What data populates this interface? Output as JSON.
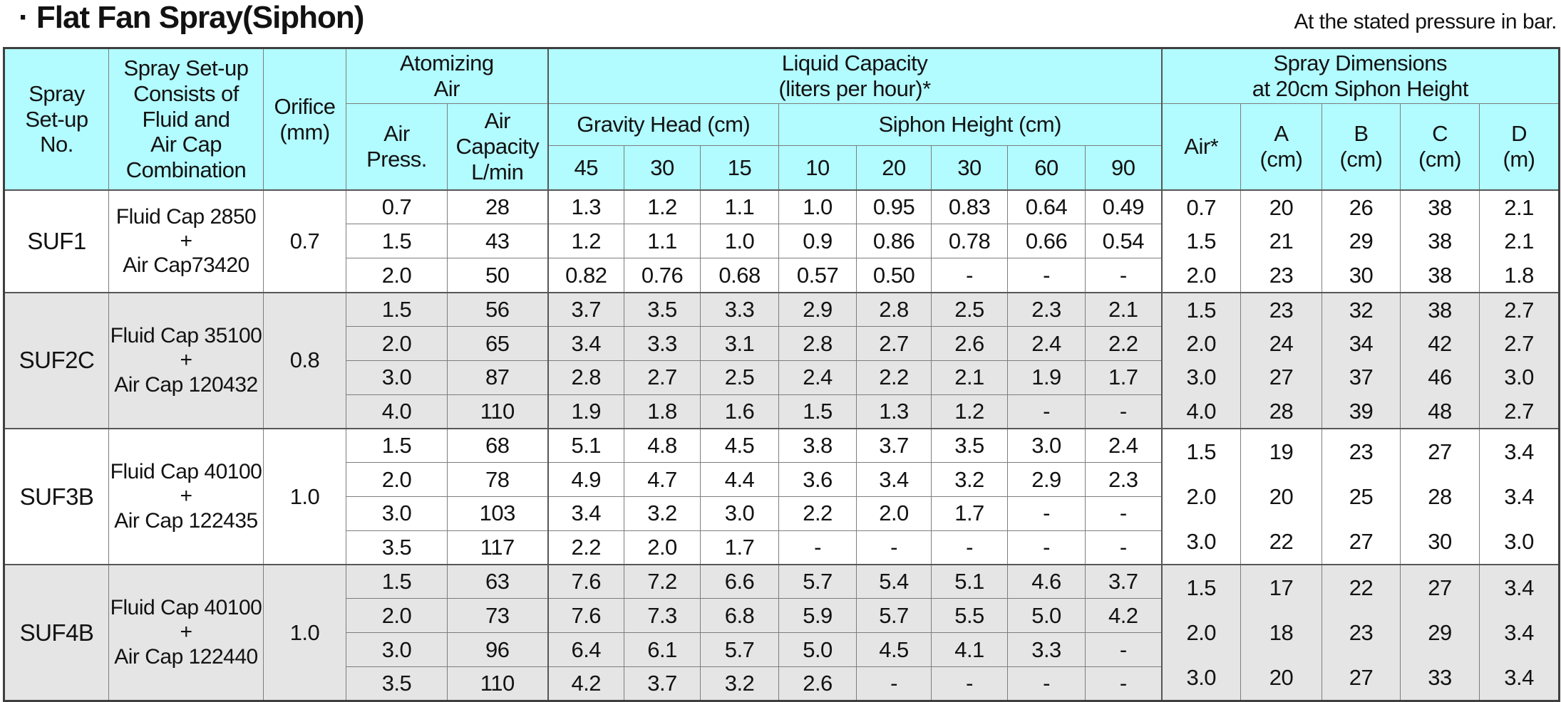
{
  "title": "· Flat Fan Spray(Siphon)",
  "pressure_note": "At the stated pressure in bar.",
  "colors": {
    "header_bg": "#b2fbff",
    "shaded_row_bg": "#e5e5e5",
    "plain_row_bg": "#ffffff",
    "grid_border": "#7d7d7d",
    "heavy_border": "#3f3f3f",
    "text": "#121212"
  },
  "header": {
    "spray_setup_no": "Spray\nSet-up\nNo.",
    "consists": "Spray Set-up\nConsists of\nFluid and\nAir Cap\nCombination",
    "orifice": "Orifice\n(mm)",
    "atomizing_air": "Atomizing\nAir",
    "air_press": "Air\nPress.",
    "air_capacity": "Air\nCapacity\nL/min",
    "liquid_capacity": "Liquid Capacity\n(liters per hour)*",
    "gravity_head": "Gravity Head (cm)",
    "siphon_height": "Siphon Height (cm)",
    "spray_dimensions": "Spray Dimensions\nat 20cm Siphon Height",
    "dim_air": "Air*",
    "dim_a": "A\n(cm)",
    "dim_b": "B\n(cm)",
    "dim_c": "C\n(cm)",
    "dim_d": "D\n(m)",
    "sub_cols": [
      "45",
      "30",
      "15",
      "10",
      "20",
      "30",
      "60",
      "90"
    ]
  },
  "column_keys": [
    "air-press",
    "air-capacity",
    "gravity-45",
    "gravity-30",
    "gravity-15",
    "siphon-10",
    "siphon-20",
    "siphon-30",
    "siphon-60",
    "siphon-90"
  ],
  "dim_keys": [
    "air",
    "a",
    "b",
    "c",
    "d"
  ],
  "groups": [
    {
      "name": "SUF1",
      "combination": "Fluid Cap 2850\n+\nAir Cap73420",
      "orifice": "0.7",
      "shaded": false,
      "rows": [
        [
          "0.7",
          "28",
          "1.3",
          "1.2",
          "1.1",
          "1.0",
          "0.95",
          "0.83",
          "0.64",
          "0.49"
        ],
        [
          "1.5",
          "43",
          "1.2",
          "1.1",
          "1.0",
          "0.9",
          "0.86",
          "0.78",
          "0.66",
          "0.54"
        ],
        [
          "2.0",
          "50",
          "0.82",
          "0.76",
          "0.68",
          "0.57",
          "0.50",
          "-",
          "-",
          "-"
        ]
      ],
      "dims": {
        "air": "0.7\n1.5\n2.0",
        "a": "20\n21\n23",
        "b": "26\n29\n30",
        "c": "38\n38\n38",
        "d": "2.1\n2.1\n1.8"
      }
    },
    {
      "name": "SUF2C",
      "combination": "Fluid Cap 35100\n+\nAir Cap 120432",
      "orifice": "0.8",
      "shaded": true,
      "rows": [
        [
          "1.5",
          "56",
          "3.7",
          "3.5",
          "3.3",
          "2.9",
          "2.8",
          "2.5",
          "2.3",
          "2.1"
        ],
        [
          "2.0",
          "65",
          "3.4",
          "3.3",
          "3.1",
          "2.8",
          "2.7",
          "2.6",
          "2.4",
          "2.2"
        ],
        [
          "3.0",
          "87",
          "2.8",
          "2.7",
          "2.5",
          "2.4",
          "2.2",
          "2.1",
          "1.9",
          "1.7"
        ],
        [
          "4.0",
          "110",
          "1.9",
          "1.8",
          "1.6",
          "1.5",
          "1.3",
          "1.2",
          "-",
          "-"
        ]
      ],
      "dims": {
        "air": "1.5\n2.0\n3.0\n4.0",
        "a": "23\n24\n27\n28",
        "b": "32\n34\n37\n39",
        "c": "38\n42\n46\n48",
        "d": "2.7\n2.7\n3.0\n2.7"
      }
    },
    {
      "name": "SUF3B",
      "combination": "Fluid Cap 40100\n+\nAir Cap 122435",
      "orifice": "1.0",
      "shaded": false,
      "rows": [
        [
          "1.5",
          "68",
          "5.1",
          "4.8",
          "4.5",
          "3.8",
          "3.7",
          "3.5",
          "3.0",
          "2.4"
        ],
        [
          "2.0",
          "78",
          "4.9",
          "4.7",
          "4.4",
          "3.6",
          "3.4",
          "3.2",
          "2.9",
          "2.3"
        ],
        [
          "3.0",
          "103",
          "3.4",
          "3.2",
          "3.0",
          "2.2",
          "2.0",
          "1.7",
          "-",
          "-"
        ],
        [
          "3.5",
          "117",
          "2.2",
          "2.0",
          "1.7",
          "-",
          "-",
          "-",
          "-",
          "-"
        ]
      ],
      "dims": {
        "air": "1.5\n2.0\n3.0",
        "a": "19\n20\n22",
        "b": "23\n25\n27",
        "c": "27\n28\n30",
        "d": "3.4\n3.4\n3.0"
      }
    },
    {
      "name": "SUF4B",
      "combination": "Fluid Cap 40100\n+\nAir Cap 122440",
      "orifice": "1.0",
      "shaded": true,
      "rows": [
        [
          "1.5",
          "63",
          "7.6",
          "7.2",
          "6.6",
          "5.7",
          "5.4",
          "5.1",
          "4.6",
          "3.7"
        ],
        [
          "2.0",
          "73",
          "7.6",
          "7.3",
          "6.8",
          "5.9",
          "5.7",
          "5.5",
          "5.0",
          "4.2"
        ],
        [
          "3.0",
          "96",
          "6.4",
          "6.1",
          "5.7",
          "5.0",
          "4.5",
          "4.1",
          "3.3",
          "-"
        ],
        [
          "3.5",
          "110",
          "4.2",
          "3.7",
          "3.2",
          "2.6",
          "-",
          "-",
          "-",
          "-"
        ]
      ],
      "dims": {
        "air": "1.5\n2.0\n3.0",
        "a": "17\n18\n20",
        "b": "22\n23\n27",
        "c": "27\n29\n33",
        "d": "3.4\n3.4\n3.4"
      }
    }
  ]
}
